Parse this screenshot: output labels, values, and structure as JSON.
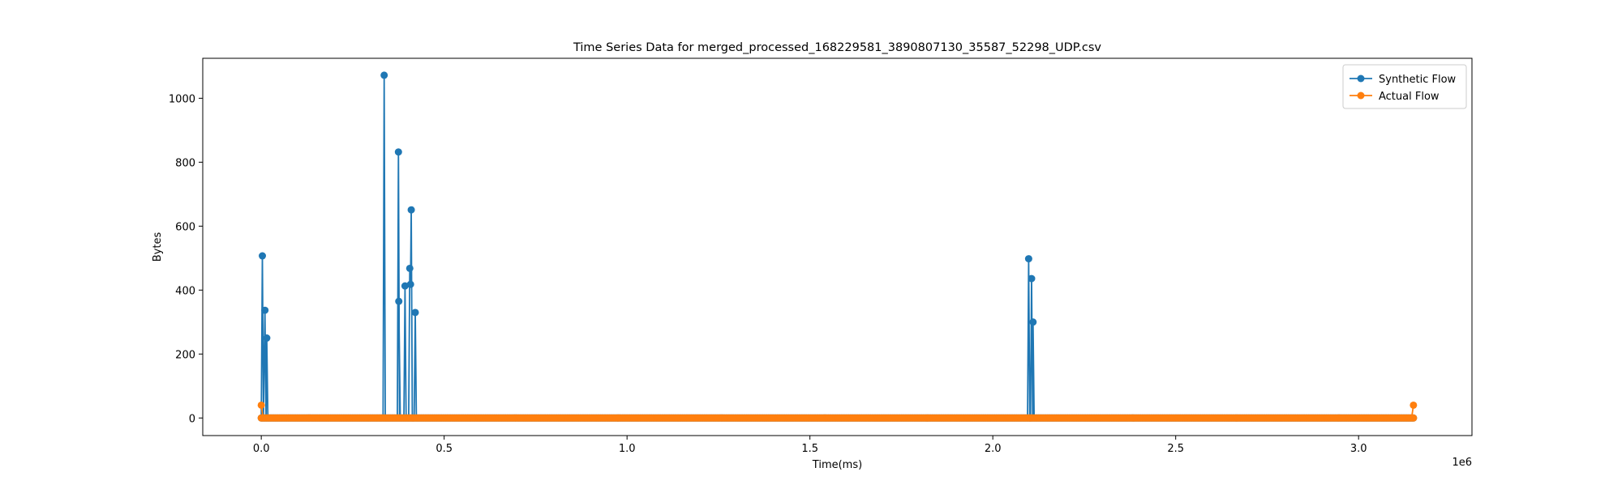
{
  "chart_data": {
    "type": "line",
    "title": "Time Series Data for merged_processed_168229581_3890807130_35587_52298_UDP.csv",
    "xlabel": "Time(ms)",
    "ylabel": "Bytes",
    "x_offset_label": "1e6",
    "x_scale": 1000000,
    "xlim": [
      -160000,
      3310000
    ],
    "ylim": [
      -55,
      1125
    ],
    "x_ticks": [
      0,
      500000,
      1000000,
      1500000,
      2000000,
      2500000,
      3000000
    ],
    "x_tick_labels": [
      "0.0",
      "0.5",
      "1.0",
      "1.5",
      "2.0",
      "2.5",
      "3.0"
    ],
    "y_ticks": [
      0,
      200,
      400,
      600,
      800,
      1000
    ],
    "y_tick_labels": [
      "0",
      "200",
      "400",
      "600",
      "800",
      "1000"
    ],
    "grid": false,
    "legend_position": "top-right",
    "series": [
      {
        "name": "Synthetic Flow",
        "color": "#1f77b4",
        "points": [
          [
            0,
            0
          ],
          [
            3000,
            507
          ],
          [
            6000,
            0
          ],
          [
            10000,
            337
          ],
          [
            13000,
            0
          ],
          [
            15000,
            250
          ],
          [
            18000,
            0
          ],
          [
            50000,
            0
          ],
          [
            150000,
            0
          ],
          [
            250000,
            0
          ],
          [
            333000,
            0
          ],
          [
            336000,
            1072
          ],
          [
            339000,
            0
          ],
          [
            372000,
            0
          ],
          [
            375000,
            832
          ],
          [
            378000,
            0
          ],
          [
            376000,
            365
          ],
          [
            380000,
            0
          ],
          [
            390000,
            0
          ],
          [
            393000,
            413
          ],
          [
            396000,
            0
          ],
          [
            403000,
            0
          ],
          [
            406000,
            468
          ],
          [
            408000,
            418
          ],
          [
            410000,
            651
          ],
          [
            413000,
            0
          ],
          [
            418000,
            0
          ],
          [
            421000,
            330
          ],
          [
            424000,
            0
          ],
          [
            800000,
            0
          ],
          [
            1300000,
            0
          ],
          [
            1800000,
            0
          ],
          [
            2095000,
            0
          ],
          [
            2098000,
            498
          ],
          [
            2101000,
            0
          ],
          [
            2103000,
            0
          ],
          [
            2106000,
            436
          ],
          [
            2109000,
            0
          ],
          [
            2110000,
            300
          ],
          [
            2113000,
            0
          ],
          [
            2500000,
            0
          ],
          [
            2900000,
            0
          ],
          [
            3150000,
            0
          ]
        ]
      },
      {
        "name": "Actual Flow",
        "color": "#ff7f0e",
        "points": [
          [
            0,
            40
          ],
          [
            5000,
            0
          ],
          [
            300000,
            0
          ],
          [
            700000,
            0
          ],
          [
            1200000,
            0
          ],
          [
            1700000,
            0
          ],
          [
            2200000,
            0
          ],
          [
            2700000,
            0
          ],
          [
            3145000,
            0
          ],
          [
            3150000,
            40
          ]
        ]
      }
    ]
  }
}
